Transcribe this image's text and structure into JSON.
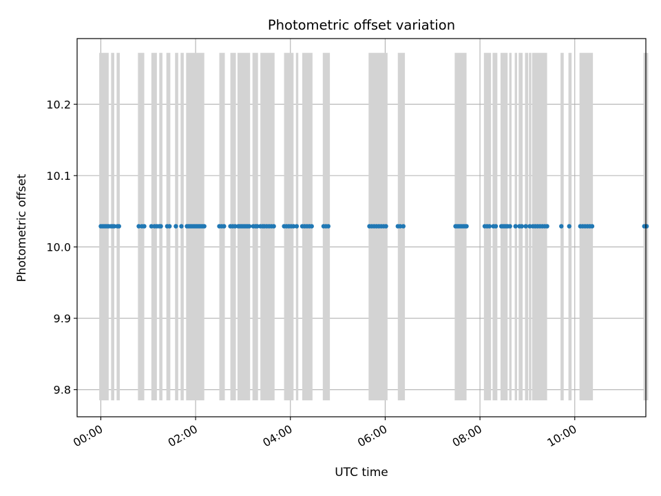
{
  "chart_data": {
    "type": "scatter",
    "title": "Photometric offset variation",
    "xlabel": "UTC time",
    "ylabel": "Photometric offset",
    "xlim": [
      "-00:30",
      "11:30"
    ],
    "ylim": [
      9.762,
      10.292
    ],
    "grid": true,
    "x_ticks": [
      "00:00",
      "02:00",
      "04:00",
      "06:00",
      "08:00",
      "10:00"
    ],
    "y_ticks": [
      9.8,
      9.9,
      10.0,
      10.1,
      10.2
    ],
    "y_tick_labels": [
      "9.8",
      "9.9",
      "10.0",
      "10.1",
      "10.2"
    ],
    "band_range": [
      9.785,
      10.272
    ],
    "band_color": "#d3d3d3",
    "marker_color": "#1f77b4",
    "bands": [
      [
        "-00:02",
        "00:10"
      ],
      [
        "00:13",
        "00:17"
      ],
      [
        "00:20",
        "00:24"
      ],
      [
        "00:47",
        "00:55"
      ],
      [
        "01:04",
        "01:11"
      ],
      [
        "01:14",
        "01:18"
      ],
      [
        "01:23",
        "01:28"
      ],
      [
        "01:34",
        "01:38"
      ],
      [
        "01:41",
        "01:45"
      ],
      [
        "01:48",
        "02:11"
      ],
      [
        "02:30",
        "02:37"
      ],
      [
        "02:44",
        "02:51"
      ],
      [
        "02:53",
        "03:09"
      ],
      [
        "03:12",
        "03:19"
      ],
      [
        "03:22",
        "03:40"
      ],
      [
        "03:52",
        "04:04"
      ],
      [
        "04:07",
        "04:10"
      ],
      [
        "04:15",
        "04:28"
      ],
      [
        "04:41",
        "04:50"
      ],
      [
        "05:39",
        "06:03"
      ],
      [
        "06:16",
        "06:25"
      ],
      [
        "07:28",
        "07:43"
      ],
      [
        "08:05",
        "08:14"
      ],
      [
        "08:16",
        "08:22"
      ],
      [
        "08:26",
        "08:35"
      ],
      [
        "08:37",
        "08:40"
      ],
      [
        "08:44",
        "08:47"
      ],
      [
        "08:49",
        "08:54"
      ],
      [
        "08:57",
        "09:01"
      ],
      [
        "09:02",
        "09:05"
      ],
      [
        "09:06",
        "09:25"
      ],
      [
        "09:42",
        "09:46"
      ],
      [
        "09:52",
        "09:56"
      ],
      [
        "10:06",
        "10:23"
      ],
      [
        "11:27",
        "11:33"
      ]
    ],
    "points": {
      "y": 10.029,
      "x": [
        "00:00",
        "00:02",
        "00:04",
        "00:06",
        "00:08",
        "00:10",
        "00:13",
        "00:15",
        "00:17",
        "00:21",
        "00:23",
        "00:48",
        "00:52",
        "00:55",
        "01:04",
        "01:08",
        "01:11",
        "01:14",
        "01:16",
        "01:24",
        "01:27",
        "01:35",
        "01:42",
        "01:49",
        "01:51",
        "01:53",
        "01:55",
        "01:57",
        "01:59",
        "02:01",
        "02:03",
        "02:05",
        "02:07",
        "02:09",
        "02:11",
        "02:30",
        "02:33",
        "02:36",
        "02:44",
        "02:47",
        "02:50",
        "02:54",
        "02:56",
        "02:58",
        "03:00",
        "03:02",
        "03:04",
        "03:06",
        "03:08",
        "03:13",
        "03:16",
        "03:18",
        "03:22",
        "03:25",
        "03:27",
        "03:30",
        "03:33",
        "03:36",
        "03:39",
        "03:52",
        "03:55",
        "03:58",
        "04:01",
        "04:04",
        "04:08",
        "04:15",
        "04:18",
        "04:21",
        "04:24",
        "04:27",
        "04:42",
        "04:45",
        "04:48",
        "05:40",
        "05:43",
        "05:46",
        "05:49",
        "05:52",
        "05:55",
        "05:58",
        "06:01",
        "06:16",
        "06:19",
        "06:23",
        "07:29",
        "07:31",
        "07:33",
        "07:35",
        "07:37",
        "07:39",
        "07:41",
        "07:43",
        "08:06",
        "08:09",
        "08:12",
        "08:17",
        "08:20",
        "08:27",
        "08:29",
        "08:31",
        "08:33",
        "08:35",
        "08:38",
        "08:45",
        "08:50",
        "08:53",
        "08:58",
        "09:03",
        "09:07",
        "09:10",
        "09:13",
        "09:16",
        "09:19",
        "09:22",
        "09:25",
        "09:43",
        "09:53",
        "10:07",
        "10:10",
        "10:13",
        "10:16",
        "10:19",
        "10:22",
        "11:28",
        "11:31"
      ]
    }
  }
}
